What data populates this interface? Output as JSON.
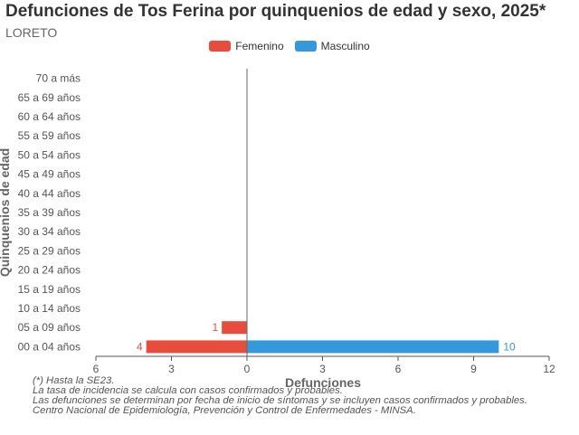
{
  "title": "Defunciones de Tos Ferina por quinquenios de edad y sexo, 2025*",
  "subtitle": "LORETO",
  "chart_data": {
    "type": "bar",
    "orientation": "horizontal-pyramid",
    "title": "Defunciones de Tos Ferina por quinquenios de edad y sexo, 2025*",
    "subtitle": "LORETO",
    "xlabel": "Defunciones",
    "ylabel": "Quinquenios de edad",
    "xlim": [
      -6,
      12
    ],
    "xticks": [
      -6,
      -3,
      0,
      3,
      6,
      9,
      12
    ],
    "xtick_labels": [
      "6",
      "3",
      "0",
      "3",
      "6",
      "9",
      "12"
    ],
    "legend_position": "top-center",
    "categories": [
      "70 a más",
      "65 a 69 años",
      "60 a 64 años",
      "55 a 59 años",
      "50 a 54 años",
      "45 a 49 años",
      "40 a 44 años",
      "35 a 39 años",
      "30 a 34 años",
      "25 a 29 años",
      "20 a 24 años",
      "15 a 19 años",
      "10 a 14 años",
      "05 a 09 años",
      "00 a 04 años"
    ],
    "series": [
      {
        "name": "Femenino",
        "color": "#e74c3c",
        "values": [
          0,
          0,
          0,
          0,
          0,
          0,
          0,
          0,
          0,
          0,
          0,
          0,
          0,
          1,
          4
        ]
      },
      {
        "name": "Masculino",
        "color": "#3498db",
        "values": [
          0,
          0,
          0,
          0,
          0,
          0,
          0,
          0,
          0,
          0,
          0,
          0,
          0,
          0,
          10
        ]
      }
    ]
  },
  "notes": [
    "(*) Hasta la SE23.",
    "La tasa de incidencia se calcula con casos confirmados y probables.",
    "Las defunciones se determinan por fecha de inicio de síntomas y se incluyen casos confirmados y probables.",
    "Centro Nacional de Epidemiología, Prevención y Control de Enfermedades - MINSA."
  ]
}
